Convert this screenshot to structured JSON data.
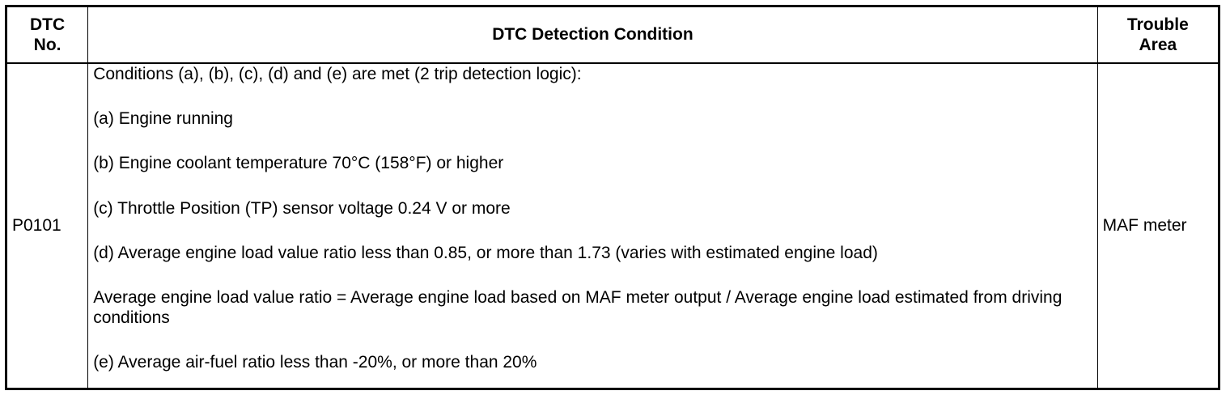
{
  "table": {
    "headers": {
      "dtc_no": [
        "DTC",
        "No."
      ],
      "condition": "DTC Detection Condition",
      "trouble_area": [
        "Trouble",
        "Area"
      ]
    },
    "row": {
      "dtc_no": "P0101",
      "conditions": [
        "Conditions (a), (b), (c), (d) and (e) are met (2 trip detection logic):",
        "(a) Engine running",
        "(b) Engine coolant temperature 70°C (158°F) or higher",
        "(c) Throttle Position (TP) sensor voltage 0.24 V or more",
        "(d) Average engine load value ratio less than 0.85, or more than 1.73 (varies with estimated engine load)",
        "Average engine load value ratio = Average engine load based on MAF meter output / Average engine load estimated from driving conditions",
        "(e) Average air-fuel ratio less than -20%, or more than 20%"
      ],
      "trouble_area": "MAF meter"
    }
  }
}
